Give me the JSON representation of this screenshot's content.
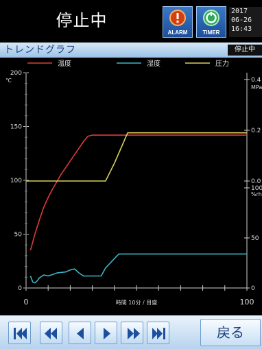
{
  "header": {
    "status": "停止中",
    "alarm_label": "ALARM",
    "timer_label": "TIMER",
    "clock_lines": [
      "2017",
      "06-26",
      "16:43"
    ]
  },
  "panel": {
    "title": "トレンドグラフ",
    "status_badge": "停止中"
  },
  "colors": {
    "temperature": "#e03a3a",
    "humidity": "#3bb8c8",
    "pressure": "#d8d05a",
    "titlebar": "#b6d4f0"
  },
  "chart_data": {
    "type": "line",
    "legend": [
      "温度",
      "湿度",
      "圧力"
    ],
    "x_label": "時間 10分 / 目盛",
    "x_ticks": [
      "0",
      "100"
    ],
    "xlim": [
      0,
      100
    ],
    "left_axis": {
      "unit": "℃",
      "ticks": [
        "200",
        "150",
        "100",
        "50",
        "0"
      ],
      "ylim": [
        0,
        200
      ]
    },
    "right_axis_pressure": {
      "unit": "MPa",
      "ticks": [
        "0.4",
        "0.2",
        "0.0"
      ],
      "ylim": [
        0,
        0.4
      ]
    },
    "right_axis_humidity": {
      "unit": "%rh",
      "ticks": [
        "100",
        "50",
        "0"
      ],
      "ylim": [
        0,
        100
      ]
    },
    "series": [
      {
        "name": "温度",
        "axis": "left",
        "x": [
          2,
          4,
          6,
          8,
          10,
          12,
          14,
          16,
          18,
          20,
          22,
          24,
          26,
          28,
          30,
          40,
          60,
          80,
          100
        ],
        "y": [
          35,
          50,
          63,
          75,
          84,
          92,
          99,
          106,
          112,
          118,
          124,
          130,
          136,
          141,
          142,
          142,
          142,
          142,
          142
        ]
      },
      {
        "name": "湿度",
        "axis": "humidity",
        "x": [
          2,
          3,
          4,
          5,
          6,
          8,
          10,
          14,
          18,
          20,
          22,
          24,
          26,
          30,
          34,
          36,
          42,
          50,
          60,
          80,
          100
        ],
        "y": [
          12,
          6,
          5,
          7,
          10,
          13,
          12,
          15,
          16,
          18,
          19,
          15,
          12,
          12,
          12,
          20,
          34,
          34,
          34,
          34,
          34
        ]
      },
      {
        "name": "圧力",
        "axis": "pressure",
        "x": [
          0,
          10,
          20,
          30,
          36,
          40,
          44,
          46,
          50,
          60,
          80,
          100
        ],
        "y": [
          0.0,
          0.0,
          0.0,
          0.0,
          0.0,
          0.07,
          0.15,
          0.19,
          0.19,
          0.19,
          0.19,
          0.19
        ]
      }
    ]
  },
  "footer": {
    "back_label": "戻る"
  },
  "icons": {
    "first": "skip-to-start-icon",
    "fast_back": "fast-rewind-icon",
    "back": "step-back-icon",
    "forward": "step-forward-icon",
    "fast_forward": "fast-forward-icon",
    "last": "skip-to-end-icon"
  }
}
